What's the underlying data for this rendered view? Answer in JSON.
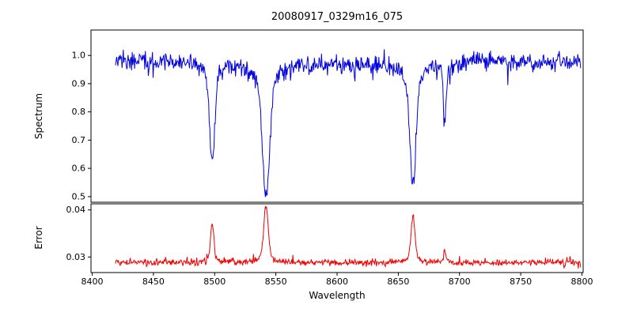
{
  "chart_data": {
    "type": "line",
    "title": "20080917_0329m16_075",
    "xlabel": "Wavelength",
    "xlim": [
      8399,
      8801
    ],
    "x_ticks": [
      8400,
      8450,
      8500,
      8550,
      8600,
      8650,
      8700,
      8750,
      8800
    ],
    "x_data_range": [
      8419,
      8799
    ],
    "seed": 20080917,
    "panels": [
      {
        "name": "spectrum",
        "ylabel": "Spectrum",
        "line_color": "#0000dd",
        "ylim": [
          0.48,
          1.09
        ],
        "y_ticks": [
          0.5,
          0.6,
          0.7,
          0.8,
          0.9,
          1.0
        ],
        "y_tick_labels": [
          "0.5",
          "0.6",
          "0.7",
          "0.8",
          "0.9",
          "1.0"
        ],
        "continuum": 0.975,
        "noise_sigma": 0.016,
        "absorption_lines": [
          {
            "center": 8498,
            "depth": 0.355,
            "sigma": 2.0
          },
          {
            "center": 8542,
            "depth": 0.475,
            "sigma": 2.8
          },
          {
            "center": 8662,
            "depth": 0.445,
            "sigma": 2.4
          },
          {
            "center": 8688,
            "depth": 0.195,
            "sigma": 1.1
          }
        ]
      },
      {
        "name": "error",
        "ylabel": "Error",
        "line_color": "#ee0000",
        "ylim": [
          0.0267,
          0.0413
        ],
        "y_ticks": [
          0.03,
          0.04
        ],
        "y_tick_labels": [
          "0.03",
          "0.04"
        ],
        "baseline": 0.0288,
        "noise_sigma": 0.00035,
        "peaks": [
          {
            "center": 8498,
            "height": 0.0084,
            "sigma": 1.3
          },
          {
            "center": 8542,
            "height": 0.0118,
            "sigma": 1.8
          },
          {
            "center": 8662,
            "height": 0.0104,
            "sigma": 1.5
          },
          {
            "center": 8688,
            "height": 0.0027,
            "sigma": 0.9
          }
        ]
      }
    ]
  }
}
